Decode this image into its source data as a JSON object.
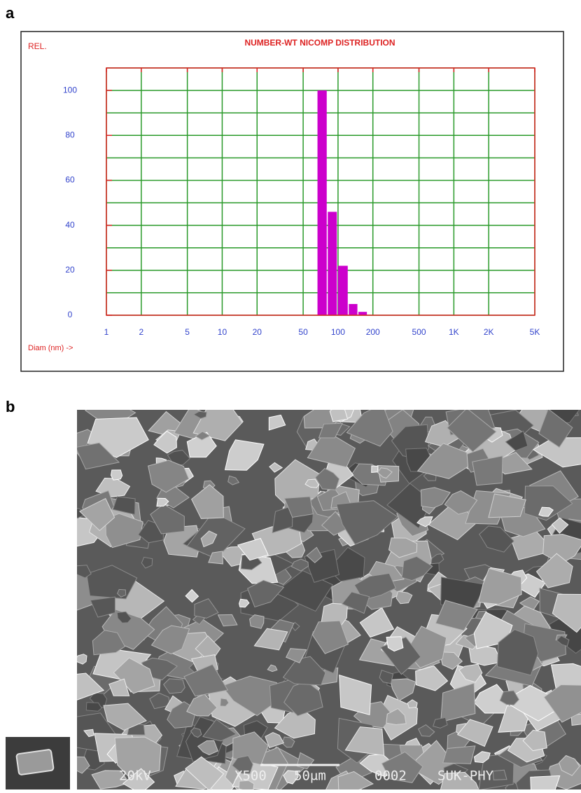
{
  "panel_a_label": "a",
  "chart_data": {
    "type": "histogram",
    "title": "NUMBER-WT NICOMP DISTRIBUTION",
    "ylabel": "REL.",
    "xlabel": "Diam (nm) ->",
    "bins": [
      66,
      81,
      99,
      123,
      149,
      180
    ],
    "values": [
      100,
      46,
      22,
      5,
      1.5
    ],
    "color": "#cc00cc",
    "xscale": "log",
    "xlim": [
      1,
      5000
    ],
    "xticks": [
      1,
      2,
      5,
      10,
      20,
      50,
      100,
      200,
      500,
      {
        "value": 1000,
        "label": "1K"
      },
      {
        "value": 2000,
        "label": "2K"
      },
      {
        "value": 5000,
        "label": "5K"
      }
    ],
    "ylim": [
      0,
      110
    ],
    "yticks": [
      0,
      20,
      40,
      60,
      80,
      100
    ],
    "ygrid": [
      0,
      10,
      20,
      30,
      40,
      50,
      60,
      70,
      80,
      90,
      100,
      110
    ],
    "grid": true,
    "grid_color": "#2a9a2a",
    "frame_color": "#dd2222",
    "tick_label_color": "#3344cc"
  },
  "panel_b": {
    "label": "b",
    "voltage": "20kV",
    "magnification": "X500",
    "scale_bar": "50μm",
    "image_number": "0002",
    "lab": "SUK-PHY"
  }
}
